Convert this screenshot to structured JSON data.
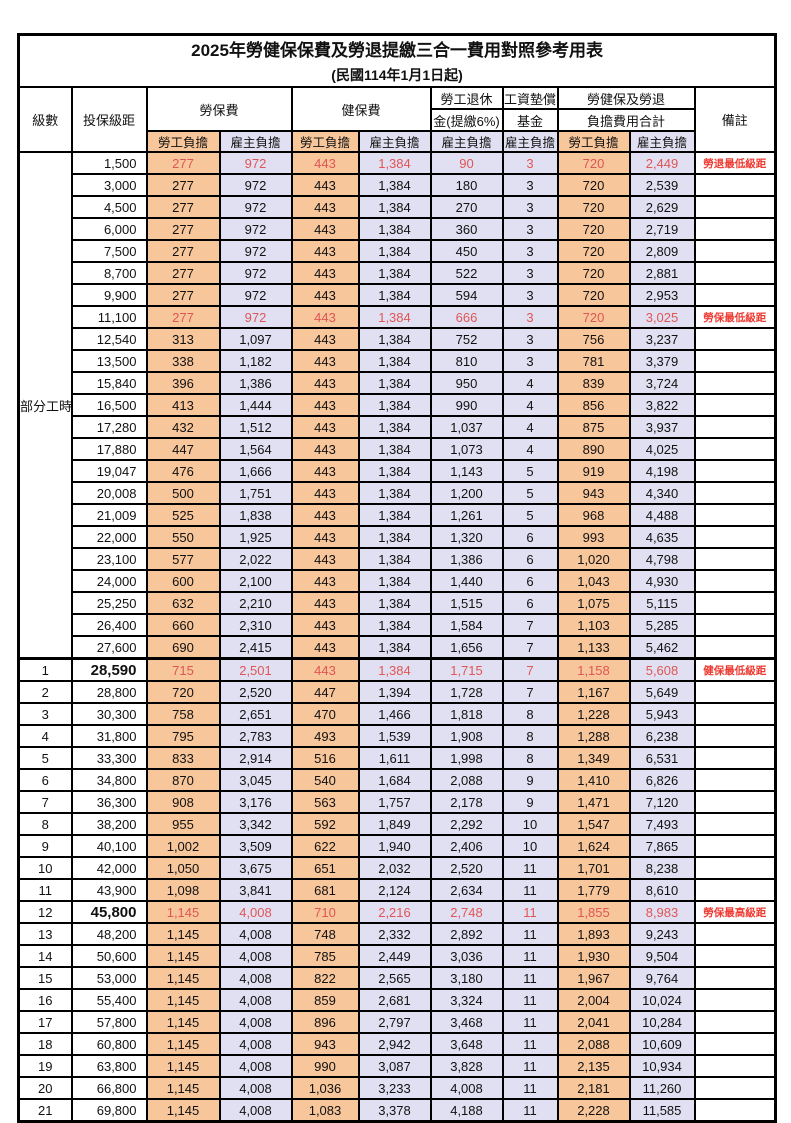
{
  "table": {
    "title": "2025年勞健保保費及勞退提繳三合一費用對照參考用表",
    "subtitle": "(民國114年1月1日起)",
    "headers": {
      "level": "級數",
      "bracket": "投保級距",
      "labor_insurance": "勞保費",
      "health_insurance": "健保費",
      "pension_line1": "勞工退休",
      "pension_line2": "金(提繳6%)",
      "wage_arrears_line1": "工資墊償",
      "wage_arrears_line2": "基金",
      "total_line1": "勞健保及勞退",
      "total_line2": "負擔費用合計",
      "remark": "備註",
      "employee_burden": "勞工負擔",
      "employer_burden": "雇主負擔"
    },
    "colors": {
      "employee_column_bg": "#F8C69B",
      "employer_column_bg": "#E1E0F2",
      "highlight_number_red": "#E05555",
      "remark_red": "#EE3B32",
      "border": "#000000"
    },
    "rows": [
      {
        "level": "部分工時",
        "level_rowspan": 23,
        "bracket": "1,500",
        "v": [
          "277",
          "972",
          "443",
          "1,384",
          "90",
          "3",
          "720",
          "2,449"
        ],
        "remark": "勞退最低級距",
        "red": true
      },
      {
        "bracket": "3,000",
        "v": [
          "277",
          "972",
          "443",
          "1,384",
          "180",
          "3",
          "720",
          "2,539"
        ]
      },
      {
        "bracket": "4,500",
        "v": [
          "277",
          "972",
          "443",
          "1,384",
          "270",
          "3",
          "720",
          "2,629"
        ]
      },
      {
        "bracket": "6,000",
        "v": [
          "277",
          "972",
          "443",
          "1,384",
          "360",
          "3",
          "720",
          "2,719"
        ]
      },
      {
        "bracket": "7,500",
        "v": [
          "277",
          "972",
          "443",
          "1,384",
          "450",
          "3",
          "720",
          "2,809"
        ]
      },
      {
        "bracket": "8,700",
        "v": [
          "277",
          "972",
          "443",
          "1,384",
          "522",
          "3",
          "720",
          "2,881"
        ]
      },
      {
        "bracket": "9,900",
        "v": [
          "277",
          "972",
          "443",
          "1,384",
          "594",
          "3",
          "720",
          "2,953"
        ]
      },
      {
        "bracket": "11,100",
        "v": [
          "277",
          "972",
          "443",
          "1,384",
          "666",
          "3",
          "720",
          "3,025"
        ],
        "remark": "勞保最低級距",
        "red": true
      },
      {
        "bracket": "12,540",
        "v": [
          "313",
          "1,097",
          "443",
          "1,384",
          "752",
          "3",
          "756",
          "3,237"
        ]
      },
      {
        "bracket": "13,500",
        "v": [
          "338",
          "1,182",
          "443",
          "1,384",
          "810",
          "3",
          "781",
          "3,379"
        ]
      },
      {
        "bracket": "15,840",
        "v": [
          "396",
          "1,386",
          "443",
          "1,384",
          "950",
          "4",
          "839",
          "3,724"
        ]
      },
      {
        "bracket": "16,500",
        "v": [
          "413",
          "1,444",
          "443",
          "1,384",
          "990",
          "4",
          "856",
          "3,822"
        ]
      },
      {
        "bracket": "17,280",
        "v": [
          "432",
          "1,512",
          "443",
          "1,384",
          "1,037",
          "4",
          "875",
          "3,937"
        ]
      },
      {
        "bracket": "17,880",
        "v": [
          "447",
          "1,564",
          "443",
          "1,384",
          "1,073",
          "4",
          "890",
          "4,025"
        ]
      },
      {
        "bracket": "19,047",
        "v": [
          "476",
          "1,666",
          "443",
          "1,384",
          "1,143",
          "5",
          "919",
          "4,198"
        ]
      },
      {
        "bracket": "20,008",
        "v": [
          "500",
          "1,751",
          "443",
          "1,384",
          "1,200",
          "5",
          "943",
          "4,340"
        ]
      },
      {
        "bracket": "21,009",
        "v": [
          "525",
          "1,838",
          "443",
          "1,384",
          "1,261",
          "5",
          "968",
          "4,488"
        ]
      },
      {
        "bracket": "22,000",
        "v": [
          "550",
          "1,925",
          "443",
          "1,384",
          "1,320",
          "6",
          "993",
          "4,635"
        ]
      },
      {
        "bracket": "23,100",
        "v": [
          "577",
          "2,022",
          "443",
          "1,384",
          "1,386",
          "6",
          "1,020",
          "4,798"
        ]
      },
      {
        "bracket": "24,000",
        "v": [
          "600",
          "2,100",
          "443",
          "1,384",
          "1,440",
          "6",
          "1,043",
          "4,930"
        ]
      },
      {
        "bracket": "25,250",
        "v": [
          "632",
          "2,210",
          "443",
          "1,384",
          "1,515",
          "6",
          "1,075",
          "5,115"
        ]
      },
      {
        "bracket": "26,400",
        "v": [
          "660",
          "2,310",
          "443",
          "1,384",
          "1,584",
          "7",
          "1,103",
          "5,285"
        ]
      },
      {
        "bracket": "27,600",
        "v": [
          "690",
          "2,415",
          "443",
          "1,384",
          "1,656",
          "7",
          "1,133",
          "5,462"
        ]
      },
      {
        "level": "1",
        "bracket": "28,590",
        "v": [
          "715",
          "2,501",
          "443",
          "1,384",
          "1,715",
          "7",
          "1,158",
          "5,608"
        ],
        "remark": "健保最低級距",
        "red": true,
        "bold": true,
        "thick_top": true
      },
      {
        "level": "2",
        "bracket": "28,800",
        "v": [
          "720",
          "2,520",
          "447",
          "1,394",
          "1,728",
          "7",
          "1,167",
          "5,649"
        ]
      },
      {
        "level": "3",
        "bracket": "30,300",
        "v": [
          "758",
          "2,651",
          "470",
          "1,466",
          "1,818",
          "8",
          "1,228",
          "5,943"
        ]
      },
      {
        "level": "4",
        "bracket": "31,800",
        "v": [
          "795",
          "2,783",
          "493",
          "1,539",
          "1,908",
          "8",
          "1,288",
          "6,238"
        ]
      },
      {
        "level": "5",
        "bracket": "33,300",
        "v": [
          "833",
          "2,914",
          "516",
          "1,611",
          "1,998",
          "8",
          "1,349",
          "6,531"
        ]
      },
      {
        "level": "6",
        "bracket": "34,800",
        "v": [
          "870",
          "3,045",
          "540",
          "1,684",
          "2,088",
          "9",
          "1,410",
          "6,826"
        ]
      },
      {
        "level": "7",
        "bracket": "36,300",
        "v": [
          "908",
          "3,176",
          "563",
          "1,757",
          "2,178",
          "9",
          "1,471",
          "7,120"
        ]
      },
      {
        "level": "8",
        "bracket": "38,200",
        "v": [
          "955",
          "3,342",
          "592",
          "1,849",
          "2,292",
          "10",
          "1,547",
          "7,493"
        ]
      },
      {
        "level": "9",
        "bracket": "40,100",
        "v": [
          "1,002",
          "3,509",
          "622",
          "1,940",
          "2,406",
          "10",
          "1,624",
          "7,865"
        ]
      },
      {
        "level": "10",
        "bracket": "42,000",
        "v": [
          "1,050",
          "3,675",
          "651",
          "2,032",
          "2,520",
          "11",
          "1,701",
          "8,238"
        ]
      },
      {
        "level": "11",
        "bracket": "43,900",
        "v": [
          "1,098",
          "3,841",
          "681",
          "2,124",
          "2,634",
          "11",
          "1,779",
          "8,610"
        ]
      },
      {
        "level": "12",
        "bracket": "45,800",
        "v": [
          "1,145",
          "4,008",
          "710",
          "2,216",
          "2,748",
          "11",
          "1,855",
          "8,983"
        ],
        "remark": "勞保最高級距",
        "red": true,
        "bold": true
      },
      {
        "level": "13",
        "bracket": "48,200",
        "v": [
          "1,145",
          "4,008",
          "748",
          "2,332",
          "2,892",
          "11",
          "1,893",
          "9,243"
        ]
      },
      {
        "level": "14",
        "bracket": "50,600",
        "v": [
          "1,145",
          "4,008",
          "785",
          "2,449",
          "3,036",
          "11",
          "1,930",
          "9,504"
        ]
      },
      {
        "level": "15",
        "bracket": "53,000",
        "v": [
          "1,145",
          "4,008",
          "822",
          "2,565",
          "3,180",
          "11",
          "1,967",
          "9,764"
        ]
      },
      {
        "level": "16",
        "bracket": "55,400",
        "v": [
          "1,145",
          "4,008",
          "859",
          "2,681",
          "3,324",
          "11",
          "2,004",
          "10,024"
        ]
      },
      {
        "level": "17",
        "bracket": "57,800",
        "v": [
          "1,145",
          "4,008",
          "896",
          "2,797",
          "3,468",
          "11",
          "2,041",
          "10,284"
        ]
      },
      {
        "level": "18",
        "bracket": "60,800",
        "v": [
          "1,145",
          "4,008",
          "943",
          "2,942",
          "3,648",
          "11",
          "2,088",
          "10,609"
        ]
      },
      {
        "level": "19",
        "bracket": "63,800",
        "v": [
          "1,145",
          "4,008",
          "990",
          "3,087",
          "3,828",
          "11",
          "2,135",
          "10,934"
        ]
      },
      {
        "level": "20",
        "bracket": "66,800",
        "v": [
          "1,145",
          "4,008",
          "1,036",
          "3,233",
          "4,008",
          "11",
          "2,181",
          "11,260"
        ]
      },
      {
        "level": "21",
        "bracket": "69,800",
        "v": [
          "1,145",
          "4,008",
          "1,083",
          "3,378",
          "4,188",
          "11",
          "2,228",
          "11,585"
        ]
      }
    ]
  }
}
